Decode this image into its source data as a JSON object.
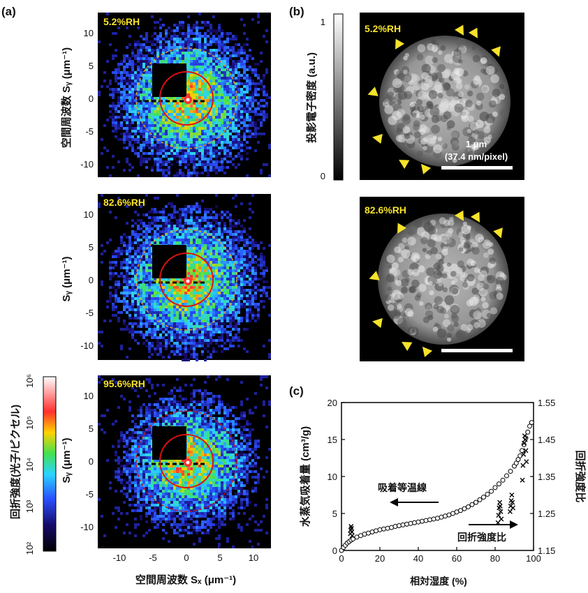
{
  "panel_labels": {
    "a": "(a)",
    "b": "(b)",
    "c": "(c)"
  },
  "panel_a": {
    "panels": [
      {
        "rh": "5.2%RH",
        "ylabel": "空間周波数 Sᵧ (μm⁻¹)"
      },
      {
        "rh": "82.6%RH",
        "ylabel": "Sᵧ (μm⁻¹)"
      },
      {
        "rh": "95.6%RH",
        "ylabel": "Sᵧ (μm⁻¹)"
      }
    ],
    "xlabel": "空間周波数 Sₓ (μm⁻¹)",
    "x_ticks": [
      "-10",
      "-5",
      "0",
      "5",
      "10"
    ],
    "y_ticks": [
      "10",
      "5",
      "0",
      "-5",
      "-10"
    ],
    "colorbar": {
      "label": "回折強度(光子/ピクセル)",
      "ticks": [
        "10⁶",
        "10⁵",
        "10⁴",
        "10³",
        "10²"
      ],
      "colors": [
        "#ffffff",
        "#ff0000",
        "#ffd200",
        "#22dd44",
        "#22d6ff",
        "#2a5cff",
        "#1a0a70",
        "#000000"
      ]
    }
  },
  "panel_b": {
    "colorbar_label": "投影電子密度 (a.u.)",
    "colorbar_ticks": [
      "1",
      "0"
    ],
    "images": [
      {
        "rh": "5.2%RH",
        "scalebar_text": "1 μm",
        "scalebar_sub": "(37.4 nm/pixel)"
      },
      {
        "rh": "82.6%RH"
      }
    ],
    "marker_color": "#f6e22a"
  },
  "chart_data": {
    "type": "scatter",
    "title": "",
    "xlabel": "相対湿度 (%)",
    "ylabel": "水蒸気吸着量 (cm³/g)",
    "y2label": "回折強度比",
    "xlim": [
      0,
      100
    ],
    "ylim": [
      0,
      20
    ],
    "y2lim": [
      1.15,
      1.55
    ],
    "x_ticks": [
      0,
      20,
      40,
      60,
      80,
      100
    ],
    "y_ticks": [
      0,
      5,
      10,
      15,
      20
    ],
    "y2_ticks": [
      1.15,
      1.25,
      1.35,
      1.45,
      1.55
    ],
    "annotations": {
      "isotherm": "吸着等温線",
      "ratio": "回折強度比"
    },
    "series": [
      {
        "name": "吸着等温線",
        "marker": "circle",
        "axis": "left",
        "x": [
          0,
          1,
          2,
          3,
          4,
          5,
          6,
          8,
          10,
          12,
          14,
          16,
          18,
          20,
          22,
          24,
          26,
          28,
          30,
          32,
          34,
          36,
          38,
          40,
          42,
          44,
          46,
          48,
          50,
          52,
          54,
          56,
          58,
          60,
          62,
          64,
          66,
          68,
          70,
          72,
          74,
          76,
          78,
          80,
          82,
          84,
          86,
          88,
          90,
          91,
          92,
          93,
          94,
          95,
          96,
          97,
          98,
          99
        ],
        "y": [
          0,
          0.4,
          0.7,
          1.0,
          1.2,
          1.4,
          1.55,
          1.8,
          2.0,
          2.2,
          2.35,
          2.5,
          2.65,
          2.8,
          2.9,
          3.0,
          3.1,
          3.25,
          3.35,
          3.45,
          3.55,
          3.65,
          3.75,
          3.85,
          3.95,
          4.05,
          4.15,
          4.25,
          4.35,
          4.5,
          4.65,
          4.8,
          5.0,
          5.2,
          5.4,
          5.65,
          5.9,
          6.2,
          6.5,
          6.85,
          7.2,
          7.6,
          8.0,
          8.5,
          9.0,
          9.5,
          10.1,
          10.7,
          11.4,
          11.8,
          12.3,
          12.8,
          13.5,
          14.3,
          15.2,
          16.0,
          16.8,
          17.3
        ]
      },
      {
        "name": "回折強度比",
        "marker": "x",
        "axis": "right",
        "x": [
          4.6,
          4.8,
          5.0,
          5.2,
          5.4,
          5.6,
          81.5,
          81.8,
          82.1,
          82.4,
          82.6,
          82.9,
          83.2,
          87.8,
          88.1,
          88.4,
          88.7,
          89.0,
          89.3,
          94.2,
          94.5,
          94.8,
          95.1,
          95.4,
          95.7,
          96.0,
          96.3
        ],
        "y": [
          1.195,
          1.205,
          1.215,
          1.21,
          1.2,
          1.19,
          1.225,
          1.245,
          1.265,
          1.28,
          1.27,
          1.255,
          1.235,
          1.255,
          1.27,
          1.285,
          1.3,
          1.28,
          1.265,
          1.34,
          1.38,
          1.41,
          1.44,
          1.46,
          1.45,
          1.42,
          1.39
        ]
      }
    ]
  }
}
